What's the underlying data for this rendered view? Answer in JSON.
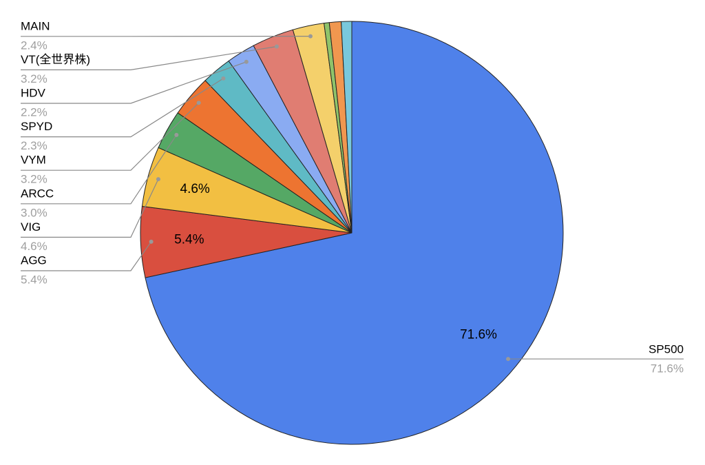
{
  "chart_data": {
    "type": "pie",
    "categories": [
      "SP500",
      "AGG",
      "VIG",
      "ARCC",
      "VYM",
      "SPYD",
      "HDV",
      "VT(全世界株)",
      "MAIN",
      null,
      null,
      null
    ],
    "values": [
      71.6,
      5.4,
      4.6,
      3.0,
      3.2,
      2.3,
      2.2,
      3.2,
      2.4,
      0.4,
      0.9,
      0.8
    ],
    "value_labels": [
      "71.6%",
      "5.4%",
      "4.6%",
      "3.0%",
      "3.2%",
      "2.3%",
      "2.2%",
      "3.2%",
      "2.4%",
      null,
      null,
      null
    ],
    "colors": [
      "#4f81ea",
      "#d94f3f",
      "#f2bf42",
      "#55a865",
      "#ed7431",
      "#5fbac5",
      "#8aabf2",
      "#e07d72",
      "#f4d06b",
      "#8fc36a",
      "#f0974f",
      "#79c8dc"
    ]
  }
}
